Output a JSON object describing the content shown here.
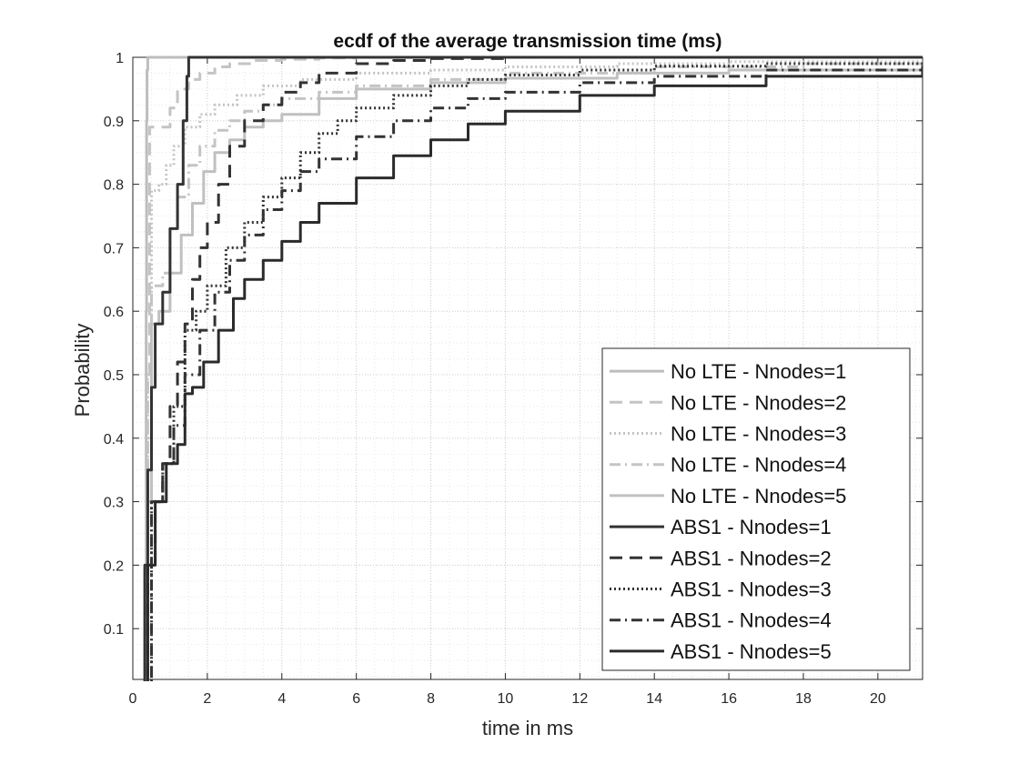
{
  "chart_data": {
    "type": "line",
    "title": "ecdf of the average transmission time (ms)",
    "xlabel": "time in ms",
    "ylabel": "Probability",
    "xlim": [
      0,
      21.2
    ],
    "ylim": [
      0.02,
      1
    ],
    "xticks": [
      0,
      2,
      4,
      6,
      8,
      10,
      12,
      14,
      16,
      18,
      20
    ],
    "yticks": [
      0.1,
      0.2,
      0.3,
      0.4,
      0.5,
      0.6,
      0.7,
      0.8,
      0.9,
      1
    ],
    "ytick_labels": [
      "0.1",
      "0.2",
      "0.3",
      "0.4",
      "0.5",
      "0.6",
      "0.7",
      "0.8",
      "0.9",
      "1"
    ],
    "grid": true,
    "minor_grid": true,
    "legend_position": "lower-right",
    "series": [
      {
        "name": "No LTE - Nnodes=1",
        "color": "#bdbdbd",
        "dash": "solid",
        "x": [
          0.36,
          0.36,
          0.36,
          0.37,
          0.38,
          0.4,
          21.2
        ],
        "y": [
          0.0,
          0.3,
          0.6,
          0.9,
          0.98,
          1.0,
          1.0
        ]
      },
      {
        "name": "No LTE - Nnodes=2",
        "color": "#c4c4c4",
        "dash": "dashed",
        "x": [
          0.36,
          0.4,
          0.45,
          0.9,
          1.0,
          1.2,
          1.5,
          1.8,
          2.2,
          2.6,
          3.2,
          4.0,
          5.0,
          6.0,
          7.0,
          21.2
        ],
        "y": [
          0.0,
          0.5,
          0.89,
          0.89,
          0.92,
          0.95,
          0.965,
          0.975,
          0.985,
          0.99,
          0.995,
          0.997,
          0.999,
          1.0,
          1.0,
          1.0
        ]
      },
      {
        "name": "No LTE - Nnodes=3",
        "color": "#c4c4c4",
        "dash": "dotted",
        "x": [
          0.36,
          0.4,
          0.5,
          0.7,
          0.9,
          1.1,
          1.4,
          1.8,
          2.2,
          2.8,
          3.5,
          4.5,
          6.0,
          8.0,
          10.0,
          13.0,
          16.0,
          21.2
        ],
        "y": [
          0.0,
          0.5,
          0.79,
          0.8,
          0.83,
          0.86,
          0.89,
          0.91,
          0.925,
          0.94,
          0.955,
          0.965,
          0.975,
          0.98,
          0.985,
          0.99,
          0.993,
          0.995
        ]
      },
      {
        "name": "No LTE - Nnodes=4",
        "color": "#c4c4c4",
        "dash": "dashdot",
        "x": [
          0.36,
          0.4,
          0.5,
          0.8,
          1.0,
          1.2,
          1.5,
          1.8,
          2.2,
          2.6,
          3.0,
          3.5,
          4.0,
          5.0,
          6.0,
          8.0,
          10.0,
          14.0,
          18.0,
          21.2
        ],
        "y": [
          0.0,
          0.4,
          0.64,
          0.66,
          0.73,
          0.78,
          0.83,
          0.86,
          0.885,
          0.9,
          0.915,
          0.925,
          0.935,
          0.945,
          0.955,
          0.965,
          0.975,
          0.985,
          0.99,
          0.993
        ]
      },
      {
        "name": "No LTE - Nnodes=5",
        "color": "#c0c0c0",
        "dash": "solid",
        "x": [
          0.36,
          0.4,
          0.5,
          0.7,
          1.0,
          1.3,
          1.6,
          1.9,
          2.2,
          2.6,
          3.0,
          3.5,
          4.0,
          5.0,
          6.0,
          8.0,
          10.0,
          13.0,
          16.0,
          21.2
        ],
        "y": [
          0.0,
          0.3,
          0.58,
          0.6,
          0.66,
          0.72,
          0.77,
          0.82,
          0.85,
          0.87,
          0.89,
          0.9,
          0.91,
          0.935,
          0.95,
          0.96,
          0.967,
          0.975,
          0.98,
          0.985
        ]
      },
      {
        "name": "ABS1 - Nnodes=1",
        "color": "#333333",
        "dash": "solid",
        "x": [
          0.3,
          0.32,
          0.4,
          0.5,
          0.6,
          0.8,
          1.0,
          1.2,
          1.35,
          1.45,
          1.5,
          21.2
        ],
        "y": [
          0.0,
          0.2,
          0.35,
          0.48,
          0.58,
          0.63,
          0.73,
          0.8,
          0.9,
          0.97,
          1.0,
          1.0
        ]
      },
      {
        "name": "ABS1 - Nnodes=2",
        "color": "#333333",
        "dash": "dashed",
        "x": [
          0.3,
          0.4,
          0.6,
          0.8,
          1.0,
          1.2,
          1.4,
          1.6,
          1.8,
          2.0,
          2.3,
          2.6,
          3.0,
          3.5,
          4.0,
          4.5,
          5.0,
          6.0,
          7.0,
          8.0,
          10.0,
          21.2
        ],
        "y": [
          0.0,
          0.2,
          0.3,
          0.36,
          0.45,
          0.52,
          0.58,
          0.65,
          0.7,
          0.74,
          0.8,
          0.86,
          0.9,
          0.925,
          0.945,
          0.96,
          0.975,
          0.99,
          0.995,
          0.998,
          1.0,
          1.0
        ]
      },
      {
        "name": "ABS1 - Nnodes=3",
        "color": "#333333",
        "dash": "dotted",
        "x": [
          0.3,
          0.5,
          0.8,
          1.1,
          1.4,
          1.7,
          2.0,
          2.5,
          3.0,
          3.5,
          4.0,
          4.5,
          5.0,
          5.5,
          6.0,
          7.0,
          8.0,
          9.0,
          10.0,
          12.0,
          14.0,
          17.0,
          21.2
        ],
        "y": [
          0.0,
          0.3,
          0.36,
          0.45,
          0.57,
          0.6,
          0.64,
          0.7,
          0.74,
          0.78,
          0.81,
          0.85,
          0.88,
          0.9,
          0.92,
          0.94,
          0.955,
          0.965,
          0.972,
          0.98,
          0.986,
          0.99,
          0.993
        ]
      },
      {
        "name": "ABS1 - Nnodes=4",
        "color": "#333333",
        "dash": "dashdot",
        "x": [
          0.3,
          0.5,
          0.8,
          1.1,
          1.4,
          1.8,
          2.2,
          2.6,
          3.0,
          3.5,
          4.0,
          4.5,
          5.0,
          6.0,
          7.0,
          8.0,
          9.0,
          10.0,
          12.0,
          14.0,
          17.0,
          21.2
        ],
        "y": [
          0.0,
          0.3,
          0.36,
          0.42,
          0.5,
          0.57,
          0.63,
          0.68,
          0.72,
          0.76,
          0.79,
          0.82,
          0.84,
          0.875,
          0.9,
          0.92,
          0.935,
          0.945,
          0.96,
          0.97,
          0.98,
          0.987
        ]
      },
      {
        "name": "ABS1 - Nnodes=5",
        "color": "#2b2b2b",
        "dash": "solid",
        "x": [
          0.3,
          0.4,
          0.6,
          0.9,
          1.2,
          1.4,
          1.6,
          1.9,
          2.3,
          2.7,
          3.0,
          3.5,
          4.0,
          4.5,
          5.0,
          6.0,
          7.0,
          8.0,
          9.0,
          10.0,
          12.0,
          14.0,
          17.0,
          21.2
        ],
        "y": [
          0.0,
          0.2,
          0.3,
          0.36,
          0.39,
          0.47,
          0.48,
          0.52,
          0.57,
          0.62,
          0.65,
          0.68,
          0.71,
          0.74,
          0.77,
          0.81,
          0.845,
          0.87,
          0.895,
          0.915,
          0.94,
          0.955,
          0.97,
          0.985
        ]
      }
    ]
  }
}
